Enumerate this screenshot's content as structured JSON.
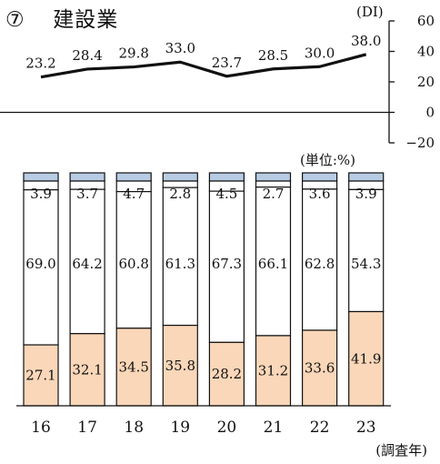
{
  "title": {
    "number": "⑦",
    "text": "建設業"
  },
  "chart_data": [
    {
      "type": "line",
      "unit": "(DI)",
      "x": [
        "16",
        "17",
        "18",
        "19",
        "20",
        "21",
        "22",
        "23"
      ],
      "values": [
        23.2,
        28.4,
        29.8,
        33.0,
        23.7,
        28.5,
        30.0,
        38.0
      ],
      "value_labels": [
        "23.2",
        "28.4",
        "29.8",
        "33.0",
        "23.7",
        "28.5",
        "30.0",
        "38.0"
      ],
      "ylim": [
        -20,
        60
      ],
      "yticks": [
        "60",
        "40",
        "20",
        "0",
        "−20"
      ],
      "ytick_values": [
        60,
        40,
        20,
        0,
        -20
      ],
      "zero_line": true,
      "line_color": "#111111"
    },
    {
      "type": "bar",
      "stacked": true,
      "percent": true,
      "unit_label": "(単位:%)",
      "categories": [
        "16",
        "17",
        "18",
        "19",
        "20",
        "21",
        "22",
        "23"
      ],
      "xlabel": "(調査年)",
      "series": [
        {
          "values": [
            27.1,
            32.1,
            34.5,
            35.8,
            28.2,
            31.2,
            33.6,
            41.9
          ],
          "labels": [
            "27.1",
            "32.1",
            "34.5",
            "35.8",
            "28.2",
            "31.2",
            "33.6",
            "41.9"
          ],
          "color": "#fad7b9"
        },
        {
          "values": [
            69.0,
            64.2,
            60.8,
            61.3,
            67.3,
            66.1,
            62.8,
            54.3
          ],
          "labels": [
            "69.0",
            "64.2",
            "60.8",
            "61.3",
            "67.3",
            "66.1",
            "62.8",
            "54.3"
          ],
          "color": "#ffffff"
        },
        {
          "values": [
            3.9,
            3.7,
            4.7,
            2.8,
            4.5,
            2.7,
            3.6,
            3.9
          ],
          "labels": [
            "3.9",
            "3.7",
            "4.7",
            "2.8",
            "4.5",
            "2.7",
            "3.6",
            "3.9"
          ],
          "color": "#ffffff"
        },
        {
          "values": [
            null,
            null,
            null,
            null,
            null,
            null,
            null,
            null
          ],
          "color": "#b8cce4"
        }
      ]
    }
  ]
}
